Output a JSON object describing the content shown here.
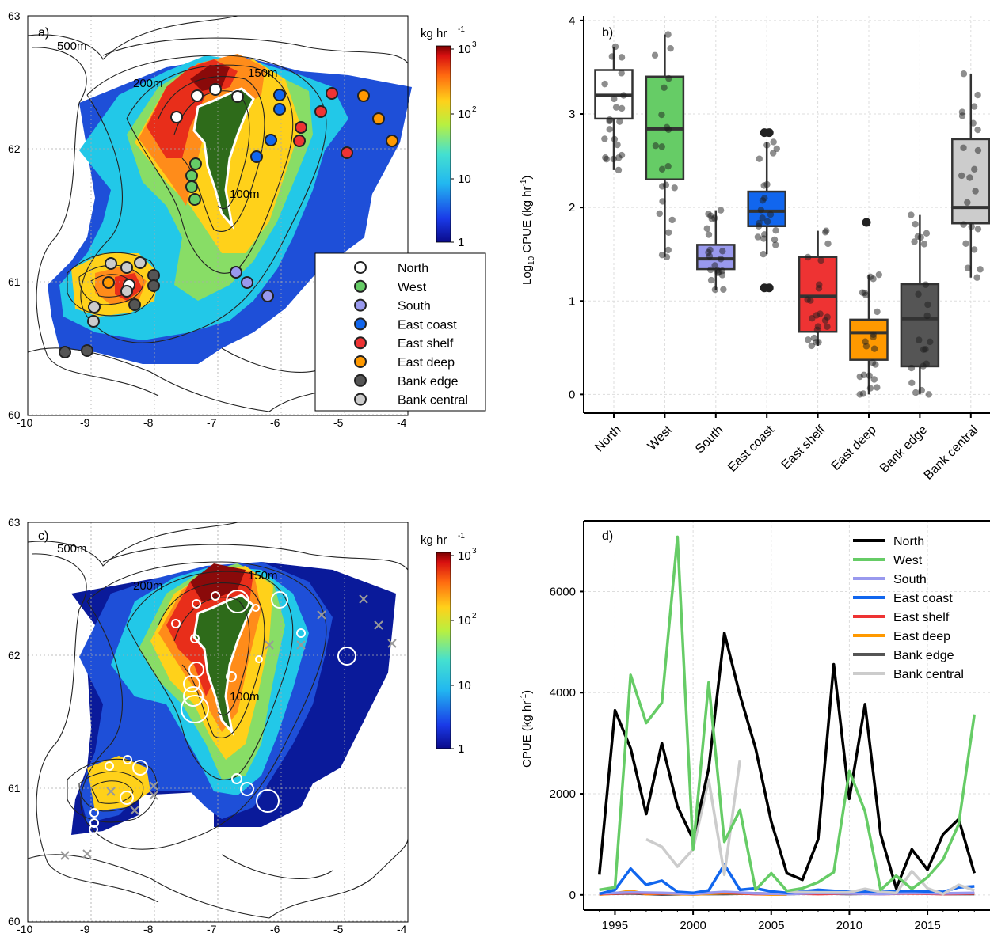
{
  "panels": {
    "a": {
      "label": "a)"
    },
    "b": {
      "label": "b)"
    },
    "c": {
      "label": "c)"
    },
    "d": {
      "label": "d)"
    }
  },
  "colors": {
    "North": "#ffffff",
    "West": "#66cc66",
    "South": "#9999ee",
    "East coast": "#1166ee",
    "East shelf": "#ee3333",
    "East deep": "#ff9900",
    "Bank edge": "#555555",
    "Bank central": "#cccccc"
  },
  "map": {
    "colorbar_title": "kg hr",
    "colorbar_title_exp": "-1",
    "colorbar_ticks": [
      "10",
      "10",
      "10",
      "1"
    ],
    "colorbar_ticks_exp": [
      "3",
      "2",
      "",
      ""
    ],
    "contour_labels": [
      "500m",
      "200m",
      "150m",
      "100m"
    ],
    "x_ticks": [
      "-10",
      "-9",
      "-8",
      "-7",
      "-6",
      "-5",
      "-4"
    ],
    "y_ticks": [
      "63",
      "62",
      "61",
      "60"
    ],
    "legend": [
      "North",
      "West",
      "South",
      "East coast",
      "East shelf",
      "East deep",
      "Bank edge",
      "Bank central"
    ]
  },
  "chart_data": [
    {
      "type": "box",
      "panel": "b",
      "ylabel": "Log10 CPUE (kg hr-1)",
      "ylim": [
        -0.2,
        4.05
      ],
      "yticks": [
        "0",
        "1",
        "2",
        "3",
        "4"
      ],
      "categories": [
        "North",
        "West",
        "South",
        "East coast",
        "East shelf",
        "East deep",
        "Bank edge",
        "Bank central"
      ],
      "boxes": [
        {
          "q1": 2.95,
          "median": 3.2,
          "q3": 3.47,
          "whisker_low": 2.4,
          "whisker_high": 3.72
        },
        {
          "q1": 2.3,
          "median": 2.84,
          "q3": 3.4,
          "whisker_low": 1.47,
          "whisker_high": 3.85
        },
        {
          "q1": 1.34,
          "median": 1.45,
          "q3": 1.6,
          "whisker_low": 1.12,
          "whisker_high": 1.97
        },
        {
          "q1": 1.8,
          "median": 1.96,
          "q3": 2.17,
          "whisker_low": 1.5,
          "whisker_high": 2.7
        },
        {
          "q1": 0.67,
          "median": 1.05,
          "q3": 1.47,
          "whisker_low": 0.52,
          "whisker_high": 1.75
        },
        {
          "q1": 0.37,
          "median": 0.66,
          "q3": 0.8,
          "whisker_low": 0.0,
          "whisker_high": 1.28
        },
        {
          "q1": 0.3,
          "median": 0.81,
          "q3": 1.18,
          "whisker_low": 0.0,
          "whisker_high": 1.92
        },
        {
          "q1": 1.83,
          "median": 2.0,
          "q3": 2.73,
          "whisker_low": 1.25,
          "whisker_high": 3.43
        }
      ],
      "outliers": [
        {
          "category": "East coast",
          "values": [
            2.8,
            2.8,
            1.14,
            1.14
          ]
        },
        {
          "category": "East deep",
          "values": [
            1.84
          ]
        }
      ]
    },
    {
      "type": "line",
      "panel": "d",
      "ylabel": "CPUE (kg hr-1)",
      "ylim": [
        -300,
        7400
      ],
      "yticks": [
        0,
        2000,
        4000,
        6000
      ],
      "xlim": [
        1993,
        2019
      ],
      "xticks": [
        1995,
        2000,
        2005,
        2010,
        2015
      ],
      "legend": [
        "North",
        "West",
        "South",
        "East coast",
        "East shelf",
        "East deep",
        "Bank edge",
        "Bank central"
      ],
      "series": [
        {
          "name": "North",
          "color": "#000000",
          "x": [
            1994,
            1995,
            1996,
            1997,
            1998,
            1999,
            2000,
            2001,
            2002,
            2003,
            2004,
            2005,
            2006,
            2007,
            2008,
            2009,
            2010,
            2011,
            2012,
            2013,
            2014,
            2015,
            2016,
            2017,
            2018
          ],
          "y": [
            400,
            3650,
            2900,
            1600,
            3000,
            1750,
            1100,
            2500,
            5180,
            3950,
            2900,
            1450,
            430,
            300,
            1100,
            4560,
            1900,
            3770,
            1200,
            130,
            900,
            500,
            1200,
            1500,
            430
          ]
        },
        {
          "name": "West",
          "color": "#66cc66",
          "x": [
            1994,
            1995,
            1996,
            1997,
            1998,
            1999,
            2000,
            2001,
            2002,
            2003,
            2004,
            2005,
            2006,
            2007,
            2008,
            2009,
            2010,
            2011,
            2012,
            2013,
            2014,
            2015,
            2016,
            2017,
            2018
          ],
          "y": [
            100,
            150,
            4350,
            3400,
            3800,
            7080,
            900,
            4200,
            1050,
            1680,
            100,
            430,
            80,
            130,
            250,
            450,
            2450,
            1650,
            100,
            380,
            120,
            350,
            700,
            1400,
            3570
          ]
        },
        {
          "name": "South",
          "color": "#9999ee",
          "x": [
            1994,
            1996,
            1998,
            2000,
            2002,
            2004,
            2006,
            2008,
            2010,
            2012,
            2014,
            2016,
            2018
          ],
          "y": [
            30,
            50,
            40,
            20,
            60,
            30,
            20,
            40,
            30,
            20,
            40,
            30,
            40
          ]
        },
        {
          "name": "East coast",
          "color": "#1166ee",
          "x": [
            1994,
            1995,
            1996,
            1997,
            1998,
            1999,
            2000,
            2001,
            2002,
            2003,
            2004,
            2005,
            2006,
            2008,
            2010,
            2012,
            2014,
            2016,
            2017,
            2018
          ],
          "y": [
            20,
            100,
            520,
            200,
            280,
            60,
            40,
            90,
            600,
            100,
            130,
            70,
            40,
            100,
            60,
            70,
            80,
            60,
            150,
            170
          ]
        },
        {
          "name": "East shelf",
          "color": "#ee3333",
          "x": [
            1994,
            1996,
            1998,
            2000,
            2002,
            2004,
            2006,
            2008,
            2010,
            2012,
            2014,
            2016,
            2018
          ],
          "y": [
            20,
            40,
            30,
            30,
            50,
            20,
            30,
            20,
            30,
            20,
            30,
            20,
            30
          ]
        },
        {
          "name": "East deep",
          "color": "#ff9900",
          "x": [
            1994,
            1995,
            1996,
            1997,
            1998,
            2000,
            2002,
            2003,
            2004,
            2005,
            2006
          ],
          "y": [
            10,
            30,
            80,
            20,
            30,
            10,
            40,
            30,
            20,
            10,
            10
          ]
        },
        {
          "name": "Bank edge",
          "color": "#555555",
          "x": [
            1994,
            1996,
            1998,
            2000,
            2002,
            2004,
            2006,
            2008,
            2010,
            2012,
            2014,
            2016,
            2018
          ],
          "y": [
            20,
            30,
            10,
            20,
            20,
            30,
            20,
            30,
            20,
            30,
            40,
            20,
            20
          ]
        },
        {
          "name": "Bank central",
          "color": "#cccccc",
          "x": [
            1997,
            1998,
            1999,
            2000,
            2001,
            2002,
            2003
          ],
          "y": [
            1100,
            950,
            560,
            900,
            2280,
            400,
            2670
          ]
        },
        {
          "name": "Bank central",
          "color": "#cccccc",
          "x": [
            2006,
            2008,
            2010,
            2011,
            2012,
            2013,
            2014,
            2015,
            2016,
            2017,
            2018
          ],
          "y": [
            60,
            50,
            50,
            120,
            60,
            40,
            470,
            130,
            20,
            200,
            90
          ]
        }
      ]
    }
  ]
}
